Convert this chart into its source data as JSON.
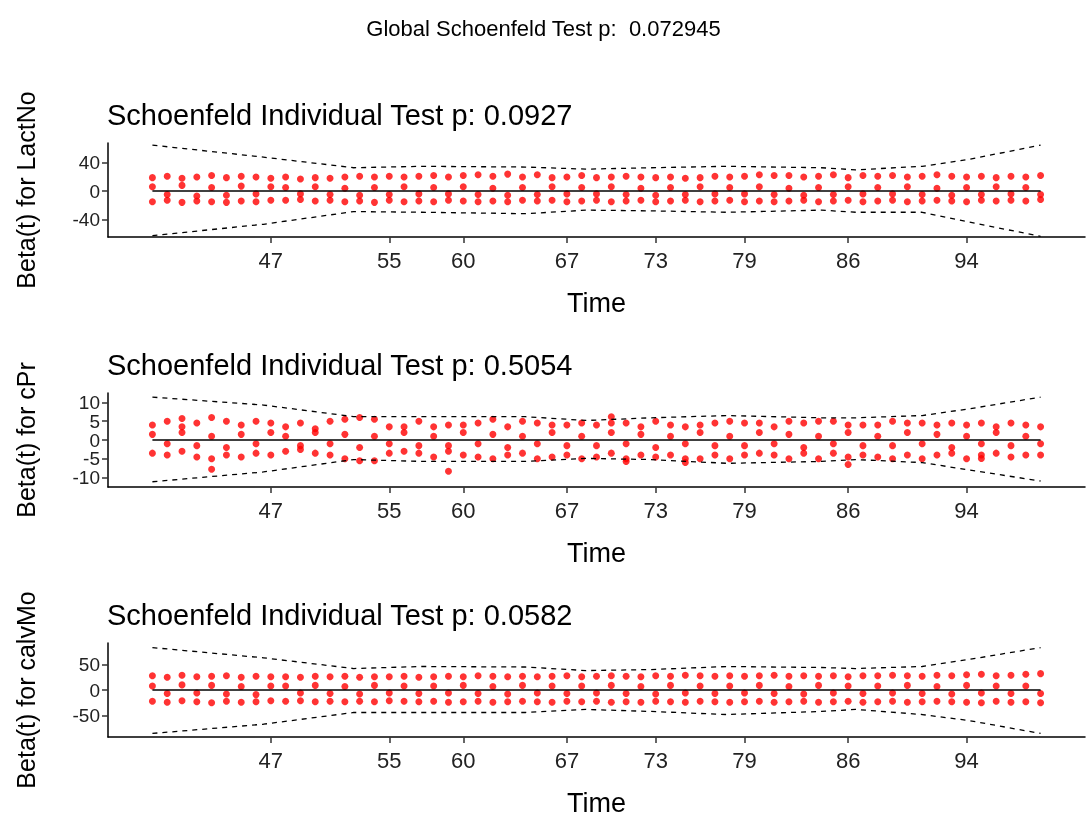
{
  "chart_data": [
    {
      "type": "scatter",
      "title": "Global Schoenfeld Test p:  0.072945",
      "subtitle": "Schoenfeld Individual Test p: 0.0927",
      "xlabel": "Time",
      "ylabel": "Beta(t) for LactNo",
      "marker": "circle",
      "grid": false,
      "xlim": [
        36,
        102
      ],
      "xticks": [
        47,
        55,
        60,
        67,
        73,
        79,
        86,
        94
      ],
      "ylim": [
        -65,
        68
      ],
      "yticks": [
        -40,
        0,
        40
      ],
      "x": [
        39,
        40,
        41,
        42,
        43,
        44,
        45,
        46,
        47,
        48,
        49,
        50,
        51,
        52,
        53,
        54,
        55,
        56,
        57,
        58,
        59,
        60,
        61,
        62,
        63,
        64,
        65,
        66,
        67,
        68,
        69,
        70,
        71,
        72,
        73,
        74,
        75,
        76,
        77,
        78,
        79,
        80,
        81,
        82,
        83,
        84,
        85,
        86,
        87,
        88,
        89,
        90,
        91,
        92,
        93,
        94,
        95,
        96,
        97,
        98,
        99
      ],
      "series": [
        {
          "color": "#ff0000",
          "values": [
            19,
            21,
            18,
            20,
            22,
            19,
            21,
            20,
            18,
            20,
            17,
            19,
            18,
            20,
            21,
            20,
            21,
            20,
            21,
            22,
            20,
            22,
            23,
            21,
            24,
            20,
            23,
            19,
            20,
            22,
            19,
            20,
            21,
            20,
            19,
            20,
            18,
            19,
            21,
            20,
            21,
            23,
            22,
            22,
            20,
            21,
            23,
            19,
            22,
            21,
            22,
            20,
            21,
            23,
            21,
            20,
            21,
            19,
            21,
            20,
            22
          ]
        },
        {
          "color": "#ff0000",
          "values": [
            6,
            -5,
            8,
            -7,
            5,
            -6,
            7,
            -4,
            6,
            5,
            -4,
            6,
            -5,
            4,
            -6,
            5,
            -5,
            6,
            -4,
            5,
            -4,
            6,
            -5,
            4,
            -6,
            5,
            -5,
            6,
            -4,
            5,
            -4,
            6,
            -5,
            4,
            -6,
            5,
            -5,
            6,
            -4,
            5,
            -4,
            6,
            -5,
            4,
            -6,
            5,
            -5,
            6,
            -4,
            5,
            -4,
            6,
            -5,
            4,
            -6,
            5,
            -5,
            6,
            -4,
            5,
            -5
          ]
        },
        {
          "color": "#ff0000",
          "values": [
            -15,
            -13,
            -16,
            -14,
            -15,
            -16,
            -14,
            -15,
            -13,
            -13,
            -12,
            -14,
            -13,
            -15,
            -14,
            -16,
            -13,
            -15,
            -14,
            -15,
            -13,
            -14,
            -15,
            -14,
            -15,
            -13,
            -14,
            -13,
            -15,
            -14,
            -13,
            -15,
            -14,
            -13,
            -15,
            -14,
            -13,
            -15,
            -14,
            -13,
            -15,
            -14,
            -15,
            -14,
            -13,
            -15,
            -14,
            -13,
            -15,
            -14,
            -13,
            -15,
            -14,
            -13,
            -14,
            -15,
            -13,
            -14,
            -13,
            -14,
            -12
          ]
        },
        {
          "type": "line",
          "marker": "none",
          "line_style": "solid",
          "color": "#000000",
          "x": [
            39,
            99
          ],
          "values": [
            0,
            0
          ]
        },
        {
          "type": "line",
          "marker": "none",
          "line_style": "dashed",
          "color": "#000000",
          "x": [
            39,
            46.5,
            52.6,
            57.2,
            64.2,
            68.3,
            72.7,
            77.8,
            84.2,
            86.5,
            91,
            94.2,
            99
          ],
          "values": [
            65,
            48,
            33,
            35,
            34,
            31,
            33,
            35,
            33,
            30,
            35,
            45,
            65
          ]
        },
        {
          "type": "line",
          "marker": "none",
          "line_style": "dashed",
          "color": "#000000",
          "x": [
            39,
            46.5,
            52.6,
            57.2,
            64.2,
            68.3,
            72.7,
            77.8,
            84.2,
            86.5,
            91,
            94.2,
            99
          ],
          "values": [
            -63,
            -47,
            -29,
            -30,
            -32,
            -27,
            -28,
            -30,
            -27,
            -30,
            -30,
            -44,
            -64
          ]
        }
      ]
    },
    {
      "type": "scatter",
      "title": "Schoenfeld Individual Test p: 0.5054",
      "xlabel": "Time",
      "ylabel": "Beta(t) for cPr",
      "marker": "circle",
      "grid": false,
      "xlim": [
        36,
        102
      ],
      "xticks": [
        47,
        55,
        60,
        67,
        73,
        79,
        86,
        94
      ],
      "ylim": [
        -12.5,
        12.5
      ],
      "yticks": [
        -10,
        -5,
        0,
        5,
        10
      ],
      "x": [
        39,
        40,
        41,
        42,
        43,
        44,
        45,
        46,
        47,
        48,
        49,
        50,
        51,
        52,
        53,
        54,
        55,
        56,
        57,
        58,
        59,
        60,
        61,
        62,
        63,
        64,
        65,
        66,
        67,
        68,
        69,
        70,
        71,
        72,
        73,
        74,
        75,
        76,
        77,
        78,
        79,
        80,
        81,
        82,
        83,
        84,
        85,
        86,
        87,
        88,
        89,
        90,
        91,
        92,
        93,
        94,
        95,
        96,
        97,
        98,
        99
      ],
      "series": [
        {
          "color": "#ff0000",
          "values": [
            4,
            5,
            3.5,
            4.5,
            6,
            5,
            4,
            5,
            4.5,
            3.5,
            4.5,
            3,
            5,
            5.5,
            6,
            5.5,
            3.5,
            3.5,
            5,
            3.5,
            4,
            4,
            4.5,
            5.5,
            3.5,
            5,
            4.5,
            4,
            4,
            4.5,
            4,
            4.5,
            4.5,
            3.5,
            5,
            4,
            3.5,
            4,
            4.5,
            5,
            4.5,
            4.5,
            3.5,
            5,
            4.5,
            5,
            5,
            4,
            4,
            4,
            5,
            4.5,
            4.5,
            4,
            4.5,
            4,
            4.5,
            3.5,
            4.5,
            4,
            3.5
          ]
        },
        {
          "color": "#ff0000",
          "values": [
            1.5,
            -1,
            2,
            -1.5,
            1,
            -2,
            1.5,
            -1,
            2,
            1,
            -1.5,
            2,
            -1,
            1.5,
            -2,
            1,
            -1,
            2,
            -1.5,
            1,
            -1.5,
            2,
            -1,
            1.5,
            -2,
            1,
            -1,
            2,
            -1.5,
            1,
            -1.5,
            2,
            -1,
            1.5,
            -2,
            1,
            -1,
            2,
            -1.5,
            1,
            -1.5,
            2,
            -1,
            1.5,
            -2,
            1,
            -1,
            2,
            -1.5,
            1,
            -1.5,
            2,
            -1,
            1.5,
            -2,
            1,
            -1,
            2,
            -1.5,
            1,
            -1
          ]
        },
        {
          "color": "#ff0000",
          "values": [
            -3.5,
            -4,
            -3,
            -4.5,
            -5,
            -4,
            -4.5,
            -3.5,
            -4,
            -3,
            -2.5,
            -3.5,
            -4,
            -5,
            -5.5,
            -5.5,
            -3.5,
            -3,
            -3.5,
            -4.5,
            -3,
            -4,
            -4.5,
            -5,
            -4,
            -3.5,
            -5,
            -4.5,
            -4,
            -5,
            -4.5,
            -3.5,
            -5,
            -4,
            -4.5,
            -4,
            -5,
            -5,
            -4,
            -5,
            -4,
            -3.5,
            -4,
            -5,
            -3.5,
            -5,
            -3.5,
            -4.5,
            -4,
            -4.5,
            -5,
            -4,
            -5,
            -4,
            -3.5,
            -5,
            -4,
            -3.5,
            -4.5,
            -4,
            -4
          ]
        },
        {
          "color": "#ff0000",
          "x": [
            41,
            43,
            59,
            70,
            71,
            75,
            86,
            95
          ],
          "values": [
            5.7,
            -7.8,
            -8.3,
            6.2,
            -5.7,
            -6.0,
            -6.5,
            -4.9
          ]
        },
        {
          "type": "line",
          "marker": "none",
          "line_style": "solid",
          "color": "#000000",
          "x": [
            39,
            99
          ],
          "values": [
            0,
            0
          ]
        },
        {
          "type": "line",
          "marker": "none",
          "line_style": "dashed",
          "color": "#000000",
          "x": [
            39,
            46.5,
            52.6,
            57.2,
            64.2,
            68.3,
            72.7,
            77.8,
            84.2,
            86.5,
            91,
            94.2,
            99
          ],
          "values": [
            11.4,
            9.3,
            6.2,
            6.2,
            6.2,
            5.2,
            5.9,
            6.5,
            5.9,
            5.9,
            6.5,
            8.3,
            11.4
          ]
        },
        {
          "type": "line",
          "marker": "none",
          "line_style": "dashed",
          "color": "#000000",
          "x": [
            39,
            46.5,
            52.6,
            57.2,
            64.2,
            68.3,
            72.7,
            77.8,
            84.2,
            86.5,
            91,
            94.2,
            99
          ],
          "values": [
            -11.1,
            -8.5,
            -5.2,
            -5.7,
            -5.7,
            -4.9,
            -5.2,
            -6.2,
            -5.7,
            -5.2,
            -6.0,
            -8.0,
            -10.9
          ]
        }
      ]
    },
    {
      "type": "scatter",
      "title": "Schoenfeld Individual Test p: 0.0582",
      "xlabel": "Time",
      "ylabel": "Beta(t) for calvMo",
      "marker": "circle",
      "grid": false,
      "xlim": [
        36,
        102
      ],
      "xticks": [
        47,
        55,
        60,
        67,
        73,
        79,
        86,
        94
      ],
      "ylim": [
        -92,
        92
      ],
      "yticks": [
        -50,
        0,
        50
      ],
      "x": [
        39,
        40,
        41,
        42,
        43,
        44,
        45,
        46,
        47,
        48,
        49,
        50,
        51,
        52,
        53,
        54,
        55,
        56,
        57,
        58,
        59,
        60,
        61,
        62,
        63,
        64,
        65,
        66,
        67,
        68,
        69,
        70,
        71,
        72,
        73,
        74,
        75,
        76,
        77,
        78,
        79,
        80,
        81,
        82,
        83,
        84,
        85,
        86,
        87,
        88,
        89,
        90,
        91,
        92,
        93,
        94,
        95,
        96,
        97,
        98,
        99
      ],
      "series": [
        {
          "color": "#ff0000",
          "values": [
            28,
            25,
            29,
            26,
            27,
            28,
            25,
            27,
            26,
            26,
            25,
            27,
            26,
            27,
            25,
            26,
            26,
            27,
            25,
            26,
            27,
            26,
            28,
            27,
            26,
            27,
            26,
            27,
            28,
            26,
            27,
            28,
            27,
            26,
            28,
            27,
            29,
            28,
            27,
            28,
            27,
            28,
            29,
            27,
            28,
            27,
            28,
            26,
            28,
            28,
            29,
            28,
            27,
            29,
            28,
            30,
            31,
            28,
            29,
            31,
            32
          ]
        },
        {
          "color": "#ff0000",
          "values": [
            8,
            -7,
            10,
            -6,
            9,
            -8,
            7,
            -9,
            8,
            8,
            -6,
            9,
            -7,
            7,
            -8,
            9,
            -6,
            8,
            -7,
            8,
            -6,
            9,
            -7,
            7,
            -8,
            9,
            -6,
            8,
            -7,
            8,
            -6,
            9,
            -7,
            7,
            -8,
            9,
            -6,
            8,
            -7,
            8,
            -6,
            9,
            -7,
            7,
            -8,
            9,
            -6,
            8,
            -7,
            8,
            -6,
            9,
            -7,
            7,
            -8,
            9,
            -6,
            8,
            -7,
            8,
            -7
          ]
        },
        {
          "color": "#ff0000",
          "values": [
            -22,
            -24,
            -21,
            -23,
            -25,
            -22,
            -24,
            -23,
            -21,
            -22,
            -21,
            -23,
            -22,
            -23,
            -22,
            -23,
            -21,
            -22,
            -23,
            -22,
            -24,
            -23,
            -22,
            -24,
            -23,
            -22,
            -23,
            -24,
            -22,
            -23,
            -22,
            -24,
            -23,
            -24,
            -22,
            -23,
            -24,
            -22,
            -23,
            -24,
            -23,
            -22,
            -24,
            -23,
            -22,
            -24,
            -23,
            -22,
            -24,
            -23,
            -22,
            -24,
            -23,
            -22,
            -23,
            -24,
            -25,
            -22,
            -24,
            -23,
            -25
          ]
        },
        {
          "type": "line",
          "marker": "none",
          "line_style": "solid",
          "color": "#000000",
          "x": [
            39,
            99
          ],
          "values": [
            0,
            0
          ]
        },
        {
          "type": "line",
          "marker": "none",
          "line_style": "dashed",
          "color": "#000000",
          "x": [
            39,
            46.5,
            52.6,
            57.2,
            64.2,
            68.3,
            72.7,
            77.8,
            84.2,
            86.5,
            91,
            94.2,
            99
          ],
          "values": [
            83,
            63,
            42,
            46,
            45,
            38,
            40,
            46,
            44,
            42,
            46,
            60,
            83
          ]
        },
        {
          "type": "line",
          "marker": "none",
          "line_style": "dashed",
          "color": "#000000",
          "x": [
            39,
            46.5,
            52.6,
            57.2,
            64.2,
            68.3,
            72.7,
            77.8,
            84.2,
            86.5,
            91,
            94.2,
            99
          ],
          "values": [
            -85,
            -67,
            -44,
            -44,
            -44,
            -38,
            -42,
            -48,
            -42,
            -38,
            -48,
            -60,
            -85
          ]
        }
      ]
    }
  ]
}
